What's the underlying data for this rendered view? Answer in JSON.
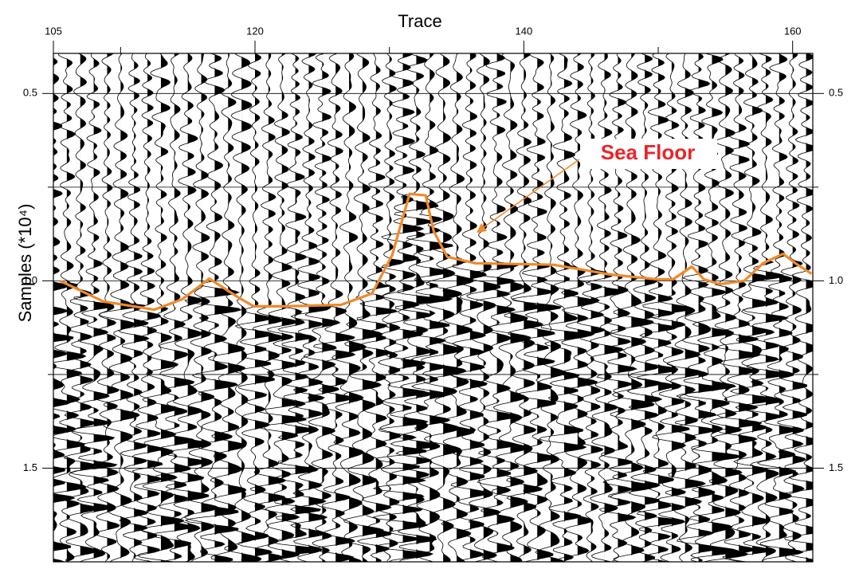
{
  "chart_data": {
    "type": "seismic",
    "x_label": "Trace",
    "y_label": "Samples (*10⁴)",
    "xlim": [
      105,
      161.5
    ],
    "xticks": [
      105,
      120,
      140,
      160
    ],
    "x_minor_ticks": [
      110,
      130,
      150
    ],
    "ylim": [
      0.393,
      1.75
    ],
    "y_reversed": true,
    "yticks": [
      0.5,
      {
        "value": 1,
        "label": "1.0"
      },
      1.5
    ],
    "y_minor_ticks": [
      0.75,
      1.25
    ],
    "grid": true,
    "series": [
      {
        "name": "Sea Floor",
        "color": "#f0892a",
        "x": [
          105.5,
          108.7,
          112.5,
          114.6,
          116.6,
          118.7,
          119.9,
          122.2,
          126.4,
          128.7,
          130.2,
          131.5,
          132.7,
          133.3,
          134.3,
          136.4,
          142.2,
          146.4,
          149.9,
          151.1,
          152.5,
          153.4,
          154.6,
          156.4,
          157.8,
          159.3,
          160.2,
          161.4
        ],
        "values": [
          1.0,
          1.055,
          1.077,
          1.049,
          0.994,
          1.043,
          1.068,
          1.068,
          1.064,
          1.034,
          0.932,
          0.768,
          0.772,
          0.868,
          0.936,
          0.953,
          0.957,
          0.983,
          0.996,
          0.996,
          0.962,
          0.996,
          1.009,
          1.0,
          0.953,
          0.928,
          0.953,
          0.981
        ]
      }
    ],
    "annotation": {
      "text": "Sea Floor",
      "color": "#e8262a"
    }
  }
}
